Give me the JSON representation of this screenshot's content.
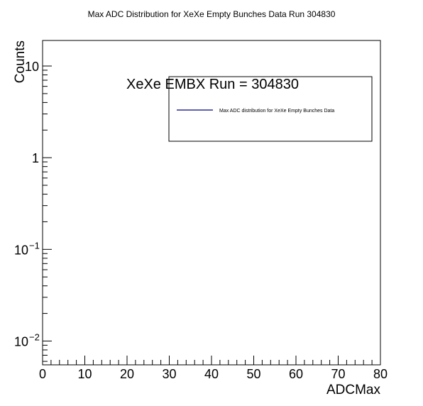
{
  "chart_data": {
    "type": "line",
    "title": "Max ADC Distribution for XeXe Empty Bunches Data Run 304830",
    "xlabel": "ADCMax",
    "ylabel": "Counts",
    "xlim": [
      0,
      80
    ],
    "ylim": [
      0.0055,
      19
    ],
    "yscale": "log",
    "grid": false,
    "x_ticks": [
      0,
      10,
      20,
      30,
      40,
      50,
      60,
      70,
      80
    ],
    "y_ticks": [
      {
        "value": 10,
        "base": "10",
        "exp": ""
      },
      {
        "value": 1,
        "base": "1",
        "exp": ""
      },
      {
        "value": 0.1,
        "base": "10",
        "exp": "−1"
      },
      {
        "value": 0.01,
        "base": "10",
        "exp": "−2"
      }
    ],
    "annotation": "XeXe EMBX Run = 304830",
    "legend": {
      "placement": "top-right"
    },
    "series": [
      {
        "name": "Max ADC distribution for XeXe Empty Bunches Data",
        "color": "#000080",
        "x": [],
        "y": []
      }
    ]
  }
}
